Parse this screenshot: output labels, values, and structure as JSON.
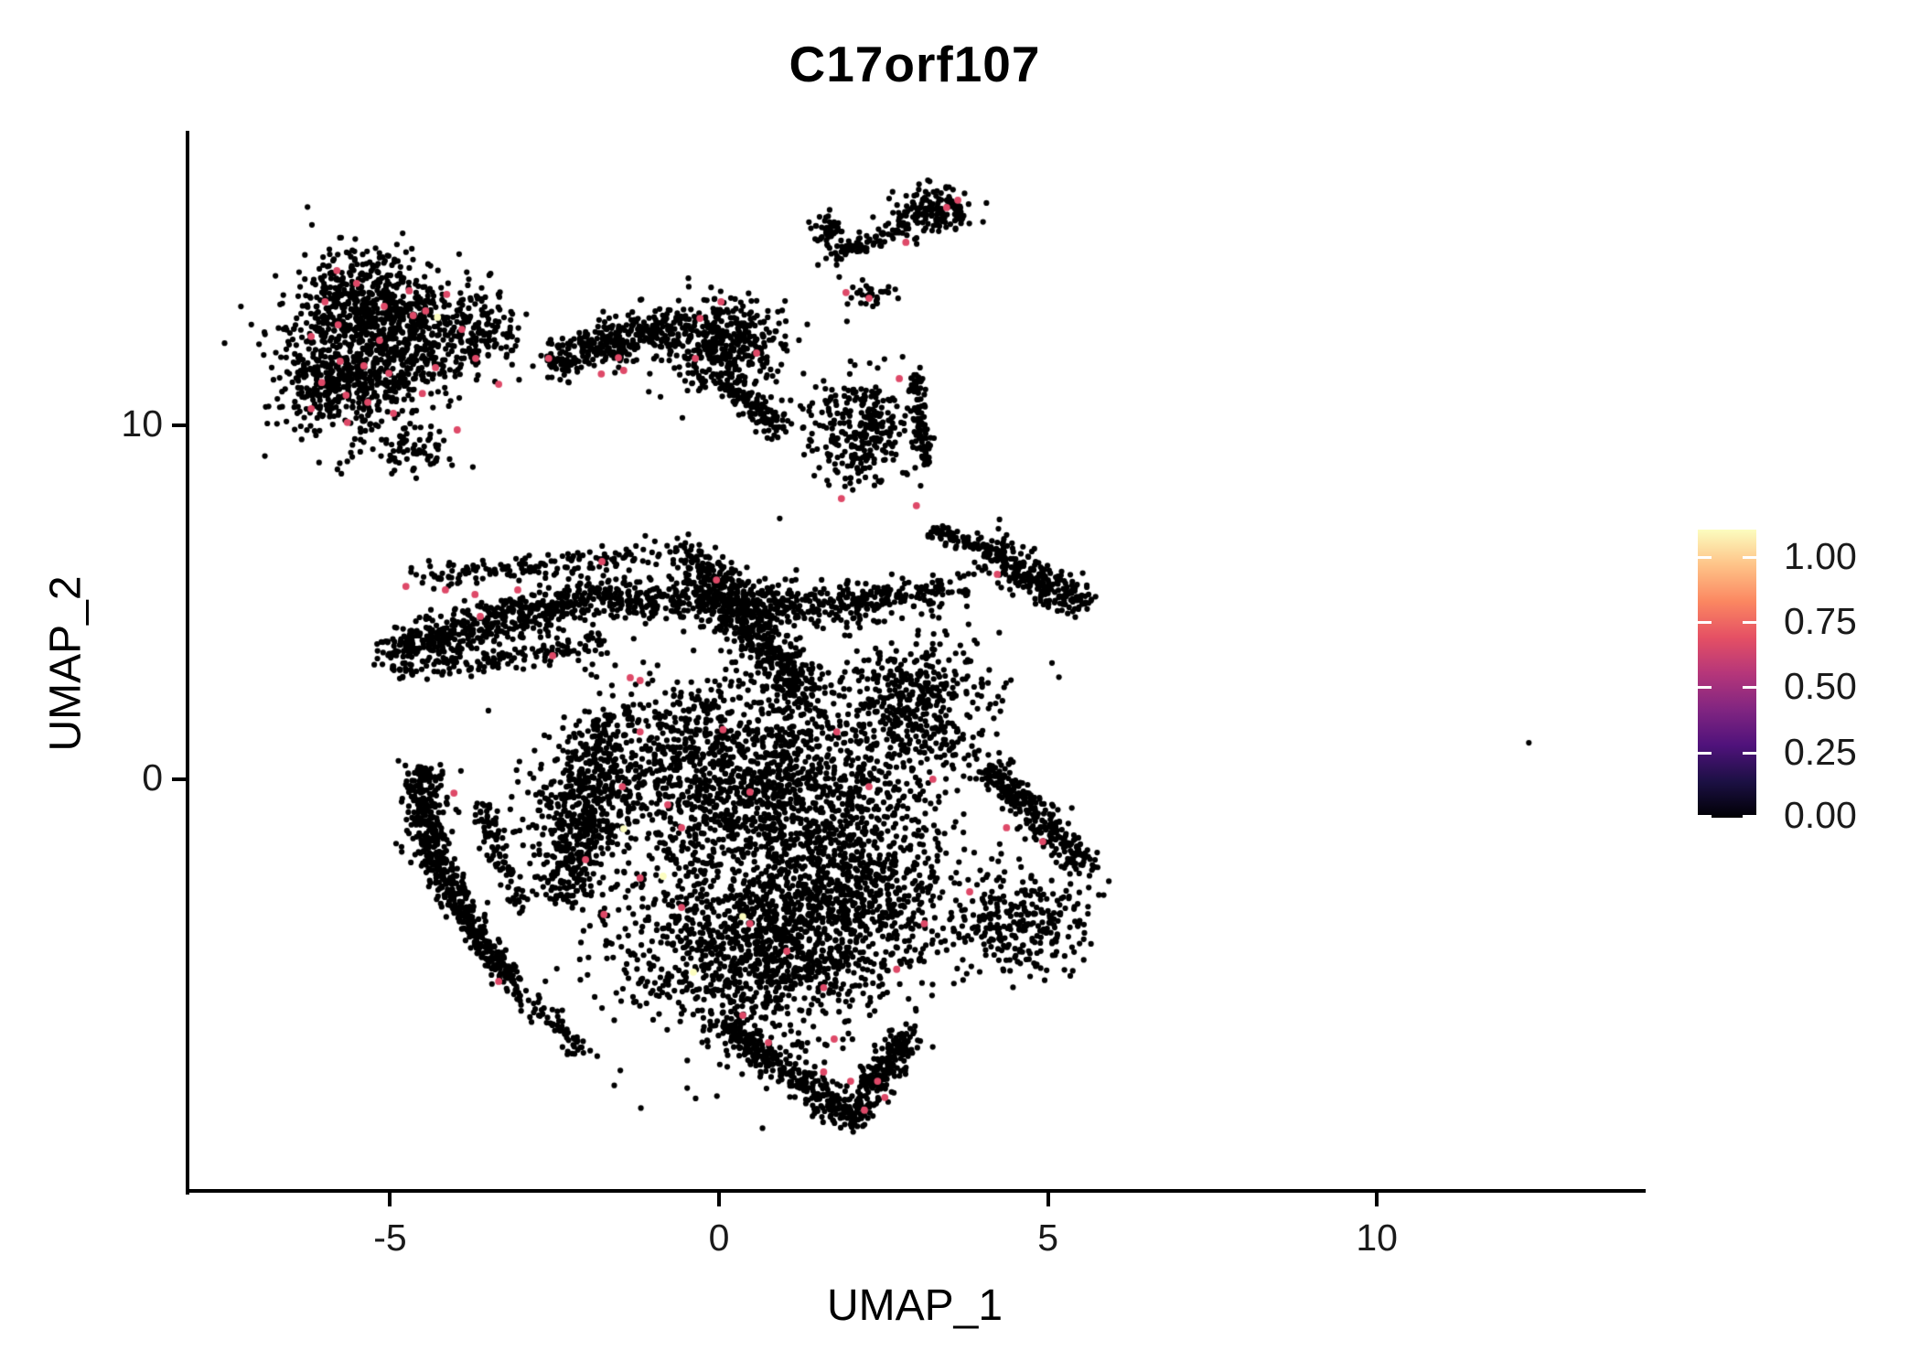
{
  "title": "C17orf107",
  "axes": {
    "x": {
      "label": "UMAP_1",
      "ticks": [
        -5,
        0,
        5,
        10
      ]
    },
    "y": {
      "label": "UMAP_2",
      "ticks": [
        0,
        10
      ]
    }
  },
  "legend": {
    "tick_labels": [
      "1.00",
      "0.75",
      "0.50",
      "0.25",
      "0.00"
    ],
    "tick_values": [
      1.0,
      0.75,
      0.5,
      0.25,
      0.0
    ],
    "colormap": "magma",
    "gradient_stops": [
      "#000004",
      "#1c1044",
      "#4f127b",
      "#812581",
      "#b5367a",
      "#e55064",
      "#fb8761",
      "#fec287",
      "#fcfdbf"
    ]
  },
  "points": {
    "base_color": "#000000",
    "mid_expression_color": "#DE4968",
    "high_expression_color": "#FCFDBF",
    "base_radius": 3.1,
    "highlight_radius": 3.9
  },
  "chart_data": {
    "type": "scatter",
    "title": "C17orf107",
    "xlabel": "UMAP_1",
    "ylabel": "UMAP_2",
    "xlim": [
      -8.08,
      14.03
    ],
    "ylim": [
      -11.63,
      18.32
    ],
    "x_ticks": [
      -5,
      0,
      5,
      10
    ],
    "y_ticks": [
      0,
      10
    ],
    "grid": false,
    "legend_position": "right",
    "color_scale": {
      "min": 0.0,
      "max": 1.1,
      "palette": "magma"
    },
    "clusters": [
      {
        "kind": "blob",
        "cx": -5.44,
        "cy": 13.49,
        "rx": 1.11,
        "ry": 1.34,
        "n": 420
      },
      {
        "kind": "blob",
        "cx": -5.72,
        "cy": 11.16,
        "rx": 0.95,
        "ry": 1.42,
        "n": 380
      },
      {
        "kind": "blob",
        "cx": -4.7,
        "cy": 12.25,
        "rx": 0.76,
        "ry": 1.55,
        "n": 280
      },
      {
        "kind": "blob",
        "cx": -5.37,
        "cy": 12.2,
        "rx": 1.56,
        "ry": 2.79,
        "n": 230
      },
      {
        "kind": "blob",
        "cx": -4.67,
        "cy": 9.35,
        "rx": 0.63,
        "ry": 0.72,
        "n": 70
      },
      {
        "kind": "blob",
        "cx": -3.67,
        "cy": 12.71,
        "rx": 0.58,
        "ry": 1.24,
        "n": 150
      },
      {
        "kind": "band",
        "x1": -2.59,
        "y1": 11.81,
        "x2": -0.64,
        "y2": 12.84,
        "jx": 0.1,
        "jy": 0.3,
        "n": 330
      },
      {
        "kind": "blob",
        "cx": 0.06,
        "cy": 12.25,
        "rx": 0.95,
        "ry": 1.34,
        "n": 420
      },
      {
        "kind": "band",
        "x1": 0.13,
        "y1": 11.16,
        "x2": 0.96,
        "y2": 9.87,
        "jx": 0.08,
        "jy": 0.2,
        "n": 130
      },
      {
        "kind": "blob",
        "cx": 3.25,
        "cy": 16.02,
        "rx": 0.58,
        "ry": 0.67,
        "n": 150
      },
      {
        "kind": "band",
        "x1": 1.7,
        "y1": 14.73,
        "x2": 2.81,
        "y2": 15.66,
        "jx": 0.06,
        "jy": 0.15,
        "n": 80
      },
      {
        "kind": "blob",
        "cx": 1.66,
        "cy": 15.5,
        "rx": 0.28,
        "ry": 0.52,
        "n": 45
      },
      {
        "kind": "blob",
        "cx": 2.31,
        "cy": 13.7,
        "rx": 0.39,
        "ry": 0.57,
        "n": 35
      },
      {
        "kind": "blob",
        "cx": 2.14,
        "cy": 9.87,
        "rx": 0.81,
        "ry": 1.55,
        "n": 300
      },
      {
        "kind": "band",
        "x1": 2.99,
        "y1": 11.55,
        "x2": 3.14,
        "y2": 8.97,
        "jx": 0.07,
        "jy": 0.15,
        "n": 90
      },
      {
        "kind": "band",
        "x1": 3.19,
        "y1": 7.03,
        "x2": 3.95,
        "y2": 6.56,
        "jx": 0.06,
        "jy": 0.12,
        "n": 60
      },
      {
        "kind": "band",
        "x1": 3.95,
        "y1": 6.51,
        "x2": 5.55,
        "y2": 4.96,
        "jx": 0.1,
        "jy": 0.28,
        "n": 280
      },
      {
        "kind": "band",
        "x1": -5.09,
        "y1": 3.62,
        "x2": -2.03,
        "y2": 5.09,
        "jx": 0.1,
        "jy": 0.3,
        "n": 500
      },
      {
        "kind": "band",
        "x1": -2.03,
        "y1": 5.09,
        "x2": 2.14,
        "y2": 4.96,
        "jx": 0.1,
        "jy": 0.33,
        "n": 520
      },
      {
        "kind": "band",
        "x1": -4.95,
        "y1": 3.02,
        "x2": -1.75,
        "y2": 3.8,
        "jx": 0.08,
        "jy": 0.18,
        "n": 150
      },
      {
        "kind": "band",
        "x1": -4.67,
        "y1": 5.74,
        "x2": -1.2,
        "y2": 6.25,
        "jx": 0.1,
        "jy": 0.16,
        "n": 140
      },
      {
        "kind": "band",
        "x1": 2.14,
        "y1": 4.96,
        "x2": 3.81,
        "y2": 5.35,
        "jx": 0.08,
        "jy": 0.26,
        "n": 140
      },
      {
        "kind": "band",
        "x1": -4.51,
        "y1": 0.31,
        "x2": -4.39,
        "y2": -2.02,
        "jx": 0.15,
        "jy": 0.16,
        "n": 240
      },
      {
        "kind": "band",
        "x1": -4.39,
        "y1": -2.02,
        "x2": -3.7,
        "y2": -4.34,
        "jx": 0.13,
        "jy": 0.16,
        "n": 220
      },
      {
        "kind": "band",
        "x1": -3.7,
        "y1": -4.34,
        "x2": -3.14,
        "y2": -5.76,
        "jx": 0.11,
        "jy": 0.13,
        "n": 130
      },
      {
        "kind": "band",
        "x1": -3.63,
        "y1": -0.72,
        "x2": -3.07,
        "y2": -3.57,
        "jx": 0.09,
        "jy": 0.16,
        "n": 100
      },
      {
        "kind": "band",
        "x1": -0.5,
        "y1": 6.51,
        "x2": 1.31,
        "y2": 2.38,
        "jx": 0.25,
        "jy": 0.28,
        "n": 550
      },
      {
        "kind": "blob",
        "cx": 0.19,
        "cy": 0.05,
        "rx": 2.36,
        "ry": 2.84,
        "n": 1500
      },
      {
        "kind": "blob",
        "cx": 0.61,
        "cy": -4.6,
        "rx": 2.09,
        "ry": 2.84,
        "n": 1300
      },
      {
        "kind": "band",
        "x1": -1.75,
        "y1": 1.86,
        "x2": -2.31,
        "y2": -3.31,
        "jx": 0.22,
        "jy": 0.25,
        "n": 350
      },
      {
        "kind": "blob",
        "cx": 2.0,
        "cy": -2.53,
        "rx": 1.67,
        "ry": 3.1,
        "n": 800
      },
      {
        "kind": "band",
        "x1": 0.06,
        "y1": -6.93,
        "x2": 2.0,
        "y2": -9.64,
        "jx": 0.16,
        "jy": 0.22,
        "n": 320
      },
      {
        "kind": "band",
        "x1": 2.0,
        "y1": -9.64,
        "x2": 2.84,
        "y2": -7.18,
        "jx": 0.13,
        "jy": 0.19,
        "n": 240
      },
      {
        "kind": "band",
        "x1": 4.09,
        "y1": 0.31,
        "x2": 5.62,
        "y2": -2.53,
        "jx": 0.14,
        "jy": 0.25,
        "n": 280
      },
      {
        "kind": "blob",
        "cx": 4.65,
        "cy": -4.08,
        "rx": 1.11,
        "ry": 1.42,
        "n": 280
      },
      {
        "kind": "blob",
        "cx": -2.31,
        "cy": -1.24,
        "rx": 0.83,
        "ry": 2.33,
        "n": 180
      },
      {
        "kind": "blob",
        "cx": 2.98,
        "cy": 2.12,
        "rx": 1.25,
        "ry": 2.07,
        "n": 450
      },
      {
        "kind": "band",
        "x1": -3.14,
        "y1": -5.89,
        "x2": -2.03,
        "y2": -7.7,
        "jx": 0.1,
        "jy": 0.13,
        "n": 70
      }
    ],
    "isolated_points": [
      [
        12.31,
        1.03
      ]
    ],
    "highlight_points": {
      "mid": [
        [
          -5.81,
          14.37
        ],
        [
          -5.51,
          14.01
        ],
        [
          -5.99,
          13.49
        ],
        [
          -5.09,
          13.36
        ],
        [
          -5.79,
          12.84
        ],
        [
          -6.2,
          12.51
        ],
        [
          -5.16,
          12.4
        ],
        [
          -4.71,
          13.8
        ],
        [
          -4.65,
          13.1
        ],
        [
          -5.76,
          11.81
        ],
        [
          -5.4,
          11.68
        ],
        [
          -5.02,
          11.47
        ],
        [
          -6.04,
          11.21
        ],
        [
          -5.67,
          10.85
        ],
        [
          -5.34,
          10.65
        ],
        [
          -4.95,
          10.34
        ],
        [
          -4.51,
          10.9
        ],
        [
          -4.31,
          11.63
        ],
        [
          -6.2,
          10.47
        ],
        [
          -5.65,
          10.08
        ],
        [
          -3.98,
          9.87
        ],
        [
          -4.46,
          13.23
        ],
        [
          -4.14,
          13.7
        ],
        [
          -3.91,
          12.71
        ],
        [
          -3.7,
          11.89
        ],
        [
          -3.35,
          11.16
        ],
        [
          -0.29,
          13.02
        ],
        [
          0.03,
          13.49
        ],
        [
          -0.36,
          11.89
        ],
        [
          0.57,
          12.04
        ],
        [
          -1.53,
          11.91
        ],
        [
          -1.45,
          11.55
        ],
        [
          -1.79,
          11.45
        ],
        [
          -2.59,
          11.89
        ],
        [
          3.46,
          16.15
        ],
        [
          3.63,
          16.36
        ],
        [
          2.84,
          15.17
        ],
        [
          1.93,
          13.75
        ],
        [
          2.28,
          13.59
        ],
        [
          2.74,
          11.32
        ],
        [
          1.86,
          7.93
        ],
        [
          3.0,
          7.73
        ],
        [
          4.23,
          5.79
        ],
        [
          -4.76,
          5.45
        ],
        [
          -4.16,
          5.35
        ],
        [
          -3.71,
          5.22
        ],
        [
          -3.06,
          5.35
        ],
        [
          -3.63,
          4.6
        ],
        [
          -1.78,
          6.15
        ],
        [
          -0.04,
          5.63
        ],
        [
          -2.53,
          3.49
        ],
        [
          -1.35,
          2.87
        ],
        [
          -1.2,
          2.79
        ],
        [
          -4.03,
          -0.39
        ],
        [
          -3.35,
          -5.71
        ],
        [
          -1.2,
          1.34
        ],
        [
          0.06,
          1.4
        ],
        [
          -1.47,
          -0.21
        ],
        [
          -0.78,
          -0.72
        ],
        [
          0.47,
          -0.36
        ],
        [
          -0.57,
          -1.37
        ],
        [
          -1.2,
          -2.79
        ],
        [
          -0.57,
          -3.62
        ],
        [
          0.47,
          -4.08
        ],
        [
          1.03,
          -4.86
        ],
        [
          1.59,
          -5.89
        ],
        [
          1.75,
          -7.34
        ],
        [
          1.59,
          -8.27
        ],
        [
          2.0,
          -8.53
        ],
        [
          2.41,
          -8.53
        ],
        [
          2.52,
          -8.99
        ],
        [
          2.21,
          -9.35
        ],
        [
          0.75,
          -7.44
        ],
        [
          0.36,
          -6.67
        ],
        [
          3.25,
          0.0
        ],
        [
          3.81,
          -3.18
        ],
        [
          4.37,
          -1.37
        ],
        [
          4.92,
          -1.76
        ],
        [
          2.7,
          -5.37
        ],
        [
          3.12,
          -4.08
        ],
        [
          2.28,
          -0.21
        ],
        [
          1.79,
          1.34
        ],
        [
          -2.03,
          -2.27
        ],
        [
          -1.75,
          -3.82
        ]
      ],
      "high": [
        [
          -4.28,
          13.05
        ],
        [
          -1.45,
          -1.4
        ],
        [
          0.36,
          -3.88
        ],
        [
          -0.39,
          -5.45
        ],
        [
          -0.85,
          -2.74
        ]
      ]
    }
  }
}
